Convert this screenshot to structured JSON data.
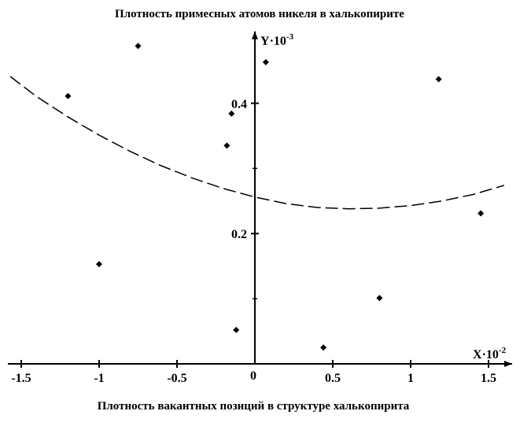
{
  "chart_data": {
    "type": "scatter",
    "title": "Плотность примесных атомов никеля в халькопирите",
    "xlabel": "Плотность вакантных позиций в структуре халькопирита",
    "x_axis_name": "X",
    "x_axis_multiplier": "·10",
    "x_axis_exponent": "-2",
    "y_axis_name": "Y",
    "y_axis_multiplier": "·10",
    "y_axis_exponent": "-3",
    "origin_label": "0",
    "xlim": [
      -1.55,
      1.6
    ],
    "ylim": [
      0,
      0.5
    ],
    "x_ticks": [
      {
        "value": -1.5,
        "label": "-1.5"
      },
      {
        "value": -1,
        "label": "-1"
      },
      {
        "value": -0.5,
        "label": "-0.5"
      },
      {
        "value": 0.5,
        "label": "0.5"
      },
      {
        "value": 1,
        "label": "1"
      },
      {
        "value": 1.5,
        "label": "1.5"
      }
    ],
    "y_ticks": [
      {
        "value": 0.2,
        "label": "0.2"
      },
      {
        "value": 0.4,
        "label": "0.4"
      }
    ],
    "y_minor_ticks": [
      0.1,
      0.3
    ],
    "grid": false,
    "series": [
      {
        "type": "scatter",
        "marker": "diamond",
        "color": "#000000",
        "points": [
          {
            "x": -1.2,
            "y": 0.411
          },
          {
            "x": -1.0,
            "y": 0.153
          },
          {
            "x": -0.75,
            "y": 0.488
          },
          {
            "x": -0.18,
            "y": 0.335
          },
          {
            "x": -0.15,
            "y": 0.384
          },
          {
            "x": -0.12,
            "y": 0.052
          },
          {
            "x": 0.07,
            "y": 0.463
          },
          {
            "x": 0.44,
            "y": 0.025
          },
          {
            "x": 0.8,
            "y": 0.101
          },
          {
            "x": 1.18,
            "y": 0.437
          },
          {
            "x": 1.45,
            "y": 0.231
          }
        ]
      },
      {
        "type": "line",
        "style": "dashed",
        "color": "#000000",
        "x": [
          -1.57,
          -1.4,
          -1.2,
          -1.0,
          -0.8,
          -0.6,
          -0.4,
          -0.2,
          0.0,
          0.2,
          0.4,
          0.6,
          0.8,
          1.0,
          1.2,
          1.4,
          1.6
        ],
        "y": [
          0.441,
          0.41,
          0.379,
          0.351,
          0.326,
          0.304,
          0.285,
          0.269,
          0.256,
          0.246,
          0.24,
          0.238,
          0.239,
          0.243,
          0.25,
          0.26,
          0.274
        ]
      }
    ]
  }
}
